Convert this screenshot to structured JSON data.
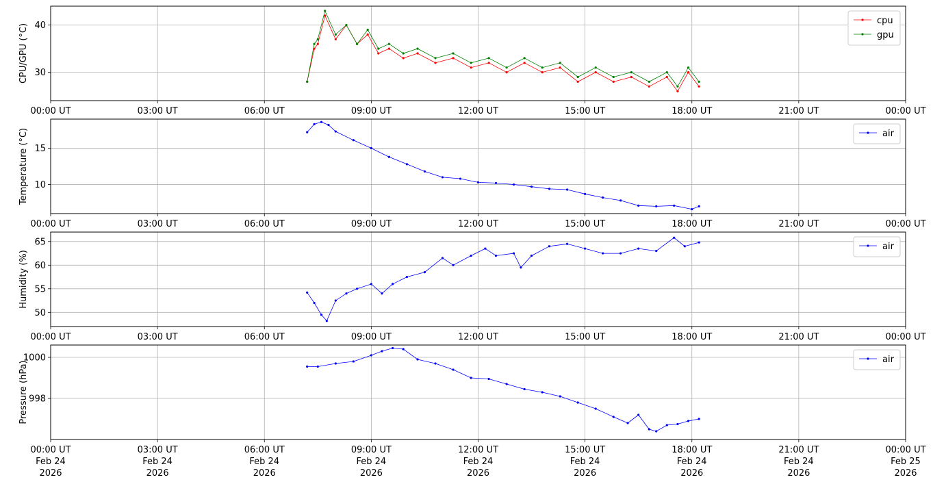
{
  "figure": {
    "x_tick_labels": [
      "00:00 UT",
      "03:00 UT",
      "06:00 UT",
      "09:00 UT",
      "12:00 UT",
      "15:00 UT",
      "18:00 UT",
      "21:00 UT",
      "00:00 UT"
    ],
    "x_tick_dates": [
      "Feb 24",
      "Feb 24",
      "Feb 24",
      "Feb 24",
      "Feb 24",
      "Feb 24",
      "Feb 24",
      "Feb 24",
      "Feb 25"
    ],
    "x_tick_years": [
      "2026",
      "2026",
      "2026",
      "2026",
      "2026",
      "2026",
      "2026",
      "2026",
      "2026"
    ]
  },
  "chart_data": [
    {
      "type": "line",
      "ylabel": "CPU/GPU (°C)",
      "xlabel": "",
      "x_unit": "hours UT, Feb 24 2026 (24 = 00:00 UT Feb 25)",
      "xlim": [
        0,
        24
      ],
      "ylim": [
        24,
        44
      ],
      "yticks": [
        30,
        40
      ],
      "grid": true,
      "legend": "top-right",
      "x": [
        7.2,
        7.4,
        7.5,
        7.7,
        8.0,
        8.3,
        8.6,
        8.9,
        9.2,
        9.5,
        9.9,
        10.3,
        10.8,
        11.3,
        11.8,
        12.3,
        12.8,
        13.3,
        13.8,
        14.3,
        14.8,
        15.3,
        15.8,
        16.3,
        16.8,
        17.3,
        17.6,
        17.9,
        18.2
      ],
      "series": [
        {
          "name": "cpu",
          "color": "#ff0000",
          "values": [
            28,
            35,
            36,
            42,
            37,
            40,
            36,
            38,
            34,
            35,
            33,
            34,
            32,
            33,
            31,
            32,
            30,
            32,
            30,
            31,
            28,
            30,
            28,
            29,
            27,
            29,
            26,
            30,
            27
          ]
        },
        {
          "name": "gpu",
          "color": "#008000",
          "values": [
            28,
            36,
            37,
            43,
            38,
            40,
            36,
            39,
            35,
            36,
            34,
            35,
            33,
            34,
            32,
            33,
            31,
            33,
            31,
            32,
            29,
            31,
            29,
            30,
            28,
            30,
            27,
            31,
            28
          ]
        }
      ]
    },
    {
      "type": "line",
      "ylabel": "Temperature (°C)",
      "xlabel": "",
      "xlim": [
        0,
        24
      ],
      "ylim": [
        6,
        19
      ],
      "yticks": [
        10,
        15
      ],
      "grid": true,
      "legend": "top-right",
      "x": [
        7.2,
        7.4,
        7.6,
        7.8,
        8.0,
        8.5,
        9.0,
        9.5,
        10.0,
        10.5,
        11.0,
        11.5,
        12.0,
        12.5,
        13.0,
        13.5,
        14.0,
        14.5,
        15.0,
        15.5,
        16.0,
        16.5,
        17.0,
        17.5,
        18.0,
        18.2
      ],
      "series": [
        {
          "name": "air",
          "color": "#0000ff",
          "values": [
            17.2,
            18.3,
            18.6,
            18.2,
            17.3,
            16.1,
            15.0,
            13.8,
            12.8,
            11.8,
            11.0,
            10.8,
            10.3,
            10.2,
            10.0,
            9.7,
            9.4,
            9.3,
            8.7,
            8.2,
            7.8,
            7.1,
            7.0,
            7.1,
            6.6,
            7.0
          ]
        }
      ]
    },
    {
      "type": "line",
      "ylabel": "Humidity (%)",
      "xlabel": "",
      "xlim": [
        0,
        24
      ],
      "ylim": [
        47,
        67
      ],
      "yticks": [
        50,
        55,
        60,
        65
      ],
      "grid": true,
      "legend": "top-right",
      "x": [
        7.2,
        7.4,
        7.6,
        7.75,
        8.0,
        8.3,
        8.6,
        9.0,
        9.3,
        9.6,
        10.0,
        10.5,
        11.0,
        11.3,
        11.8,
        12.2,
        12.5,
        13.0,
        13.2,
        13.5,
        14.0,
        14.5,
        15.0,
        15.5,
        16.0,
        16.5,
        17.0,
        17.5,
        17.8,
        18.2
      ],
      "series": [
        {
          "name": "air",
          "color": "#0000ff",
          "values": [
            54.2,
            52,
            49.5,
            48.2,
            52.5,
            54,
            55,
            56,
            54,
            56,
            57.5,
            58.5,
            61.5,
            60,
            62,
            63.5,
            62,
            62.5,
            59.5,
            62,
            64,
            64.5,
            63.5,
            62.5,
            62.5,
            63.5,
            63,
            65.8,
            64,
            64.8
          ]
        }
      ]
    },
    {
      "type": "line",
      "ylabel": "Pressure (hPa)",
      "xlabel": "",
      "xlim": [
        0,
        24
      ],
      "ylim": [
        996.0,
        1000.6
      ],
      "yticks": [
        998,
        1000
      ],
      "grid": true,
      "legend": "top-right",
      "x": [
        7.2,
        7.5,
        8.0,
        8.5,
        9.0,
        9.3,
        9.6,
        9.9,
        10.3,
        10.8,
        11.3,
        11.8,
        12.3,
        12.8,
        13.3,
        13.8,
        14.3,
        14.8,
        15.3,
        15.8,
        16.2,
        16.5,
        16.8,
        17.0,
        17.3,
        17.6,
        17.9,
        18.2
      ],
      "series": [
        {
          "name": "air",
          "color": "#0000ff",
          "values": [
            999.55,
            999.55,
            999.7,
            999.8,
            1000.1,
            1000.3,
            1000.45,
            1000.4,
            999.9,
            999.7,
            999.4,
            999.0,
            998.95,
            998.7,
            998.45,
            998.3,
            998.1,
            997.8,
            997.5,
            997.1,
            996.8,
            997.2,
            996.5,
            996.4,
            996.7,
            996.75,
            996.9,
            997.0
          ]
        }
      ]
    }
  ]
}
